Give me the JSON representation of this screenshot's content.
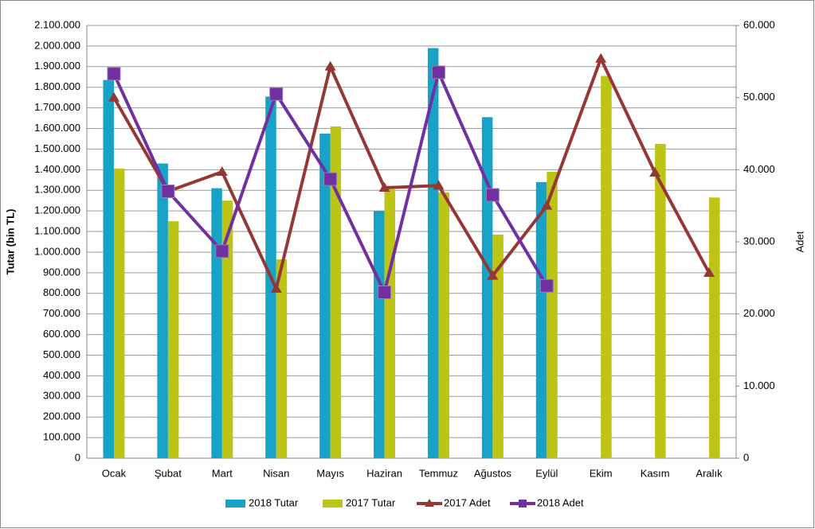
{
  "chart_data": {
    "type": "bar-line",
    "y_label": "Tutar (bin TL)",
    "y2_label": "Adet",
    "categories": [
      "Ocak",
      "Şubat",
      "Mart",
      "Nisan",
      "Mayıs",
      "Haziran",
      "Temmuz",
      "Ağustos",
      "Eylül",
      "Ekim",
      "Kasım",
      "Aralık"
    ],
    "series": [
      {
        "name": "2018 Tutar",
        "type": "bar",
        "color": "#17a3c8",
        "values": [
          1835000,
          1430000,
          1310000,
          1755000,
          1575000,
          1200000,
          1990000,
          1655000,
          1340000,
          null,
          null,
          null
        ]
      },
      {
        "name": "2017 Tutar",
        "type": "bar",
        "color": "#bcc416",
        "values": [
          1405000,
          1150000,
          1250000,
          965000,
          1610000,
          1305000,
          1290000,
          1085000,
          1390000,
          1855000,
          1525000,
          1265000
        ]
      },
      {
        "name": "2017 Adet",
        "type": "line",
        "axis": "y2",
        "marker": "triangle",
        "color": "#953735",
        "values": [
          50000,
          37000,
          39700,
          23500,
          54300,
          37500,
          37800,
          25300,
          35000,
          55400,
          39600,
          25700
        ]
      },
      {
        "name": "2018 Adet",
        "type": "line",
        "axis": "y2",
        "marker": "square",
        "color": "#7030a0",
        "values": [
          53300,
          37000,
          28700,
          50500,
          38700,
          23000,
          53500,
          36500,
          23900,
          null,
          null,
          null
        ]
      }
    ],
    "ylim": [
      0,
      2100000
    ],
    "yticks": [
      0,
      {
        "value": 100000,
        "label": "100.000"
      },
      {
        "value": 200000,
        "label": "200.000"
      },
      {
        "value": 300000,
        "label": "300.000"
      },
      {
        "value": 400000,
        "label": "400.000"
      },
      {
        "value": 500000,
        "label": "500.000"
      },
      {
        "value": 600000,
        "label": "600.000"
      },
      {
        "value": 700000,
        "label": "700.000"
      },
      {
        "value": 800000,
        "label": "800.000"
      },
      {
        "value": 900000,
        "label": "900.000"
      },
      {
        "value": 1000000,
        "label": "1.000.000"
      },
      {
        "value": 1100000,
        "label": "1.100.000"
      },
      {
        "value": 1200000,
        "label": "1.200.000"
      },
      {
        "value": 1300000,
        "label": "1.300.000"
      },
      {
        "value": 1400000,
        "label": "1.400.000"
      },
      {
        "value": 1500000,
        "label": "1.500.000"
      },
      {
        "value": 1600000,
        "label": "1.600.000"
      },
      {
        "value": 1700000,
        "label": "1.700.000"
      },
      {
        "value": 1800000,
        "label": "1.800.000"
      },
      {
        "value": 1900000,
        "label": "1.900.000"
      },
      {
        "value": 2000000,
        "label": "2.000.000"
      },
      {
        "value": 2100000,
        "label": "2.100.000"
      }
    ],
    "y2lim": [
      0,
      60000
    ],
    "y2ticks": [
      0,
      {
        "value": 10000,
        "label": "10.000"
      },
      {
        "value": 20000,
        "label": "20.000"
      },
      {
        "value": 30000,
        "label": "30.000"
      },
      {
        "value": 40000,
        "label": "40.000"
      },
      {
        "value": 50000,
        "label": "50.000"
      },
      {
        "value": 60000,
        "label": "60.000"
      }
    ],
    "grid": true,
    "legend": "bottom"
  }
}
